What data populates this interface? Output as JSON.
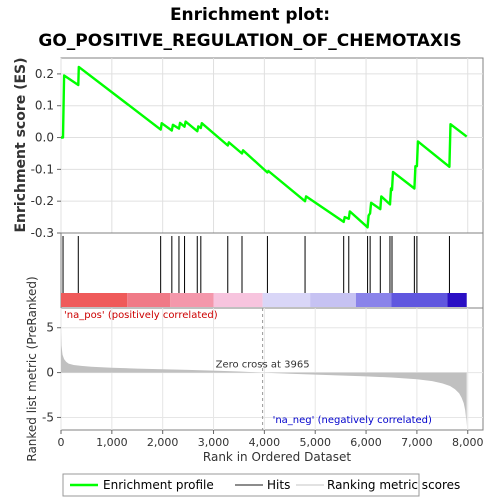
{
  "title_line1": "Enrichment plot:",
  "title_line2": "GO_POSITIVE_REGULATION_OF_CHEMOTAXIS",
  "colors": {
    "enrichment": "#00ff00",
    "hits": "#000000",
    "metric": "#c0c0c0",
    "pos_label": "#cc0000",
    "neg_label": "#0000cc"
  },
  "chart_data": {
    "type": "line",
    "xlabel": "Rank in Ordered Dataset",
    "x_ticks": [
      "0",
      "1,000",
      "2,000",
      "3,000",
      "4,000",
      "5,000",
      "6,000",
      "7,000",
      "8,000"
    ],
    "x_tick_values": [
      0,
      1000,
      2000,
      3000,
      4000,
      5000,
      6000,
      7000,
      8000
    ],
    "xlim": [
      0,
      8300
    ],
    "n_genes": 7980,
    "es_panel": {
      "ylabel": "Enrichment score (ES)",
      "ylim": [
        -0.3,
        0.25
      ],
      "y_ticks": [
        "0.2",
        "0.1",
        "0.0",
        "-0.1",
        "-0.2",
        "-0.3"
      ],
      "y_tick_values": [
        0.2,
        0.1,
        0.0,
        -0.1,
        -0.2,
        -0.3
      ],
      "series": [
        {
          "name": "Enrichment profile",
          "x": [
            0,
            40,
            60,
            340,
            350,
            1960,
            1980,
            2180,
            2200,
            2320,
            2340,
            2430,
            2450,
            2680,
            2700,
            2750,
            2770,
            3280,
            3300,
            3560,
            3580,
            4060,
            4080,
            4800,
            4820,
            5560,
            5580,
            5660,
            5680,
            6030,
            6050,
            6080,
            6100,
            6280,
            6300,
            6470,
            6490,
            6510,
            6530,
            6950,
            6970,
            7000,
            7020,
            7640,
            7660,
            7980
          ],
          "y": [
            0.0,
            0.0,
            0.195,
            0.165,
            0.222,
            0.025,
            0.045,
            0.022,
            0.04,
            0.028,
            0.046,
            0.034,
            0.05,
            0.02,
            0.035,
            0.03,
            0.045,
            -0.025,
            -0.015,
            -0.05,
            -0.04,
            -0.11,
            -0.105,
            -0.2,
            -0.185,
            -0.265,
            -0.25,
            -0.255,
            -0.232,
            -0.282,
            -0.245,
            -0.238,
            -0.205,
            -0.225,
            -0.185,
            -0.21,
            -0.16,
            -0.165,
            -0.108,
            -0.16,
            -0.09,
            -0.09,
            -0.012,
            -0.092,
            0.042,
            0.003
          ]
        }
      ]
    },
    "hits": [
      40,
      340,
      1960,
      2180,
      2320,
      2430,
      2680,
      2750,
      3280,
      3560,
      4060,
      4800,
      5560,
      5660,
      6030,
      6080,
      6280,
      6470,
      6510,
      6950,
      7000,
      7640
    ],
    "metric_panel": {
      "ylabel": "Ranked list metric (PreRanked)",
      "ylim": [
        -6.4,
        7.2
      ],
      "y_ticks": [
        "5",
        "0",
        "-5"
      ],
      "y_tick_values": [
        5,
        0,
        -5
      ],
      "zero_cross_label": "Zero cross at 3965",
      "zero_cross": 3965,
      "pos_label": "'na_pos' (positively correlated)",
      "neg_label": "'na_neg' (negatively correlated)",
      "x": [
        0,
        10,
        30,
        60,
        100,
        150,
        250,
        400,
        600,
        1000,
        1500,
        2000,
        2500,
        3000,
        3500,
        3965,
        4500,
        5000,
        5500,
        6000,
        6500,
        7000,
        7300,
        7500,
        7650,
        7750,
        7830,
        7880,
        7920,
        7950,
        7970,
        7980
      ],
      "y": [
        4.5,
        3.0,
        2.0,
        1.5,
        1.2,
        1.0,
        0.85,
        0.75,
        0.65,
        0.55,
        0.45,
        0.38,
        0.3,
        0.22,
        0.12,
        0.0,
        -0.12,
        -0.22,
        -0.32,
        -0.42,
        -0.55,
        -0.75,
        -0.95,
        -1.2,
        -1.5,
        -1.85,
        -2.3,
        -2.8,
        -3.4,
        -4.2,
        -5.2,
        -6.0
      ]
    },
    "legend": {
      "placement": "bottom",
      "entries": [
        "Enrichment profile",
        "Hits",
        "Ranking metric scores"
      ]
    }
  }
}
